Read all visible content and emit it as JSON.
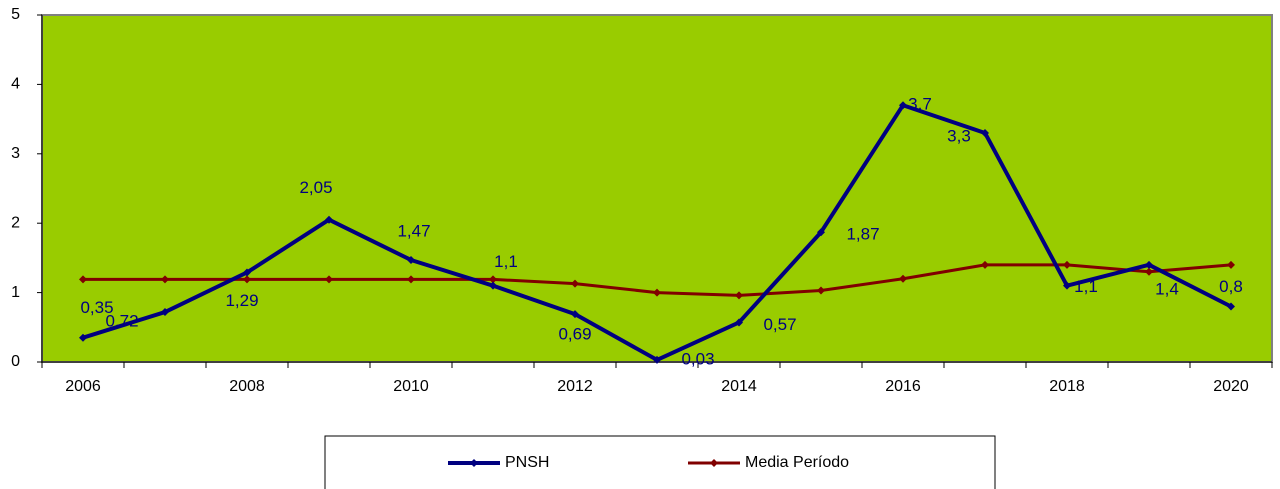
{
  "chart_data": {
    "type": "line",
    "categories": [
      "2006",
      null,
      "2008",
      null,
      "2010",
      null,
      "2012",
      null,
      "2014",
      null,
      "2016",
      null,
      "2018",
      null,
      "2020"
    ],
    "series": [
      {
        "name": "PNSH",
        "color": "#000080",
        "values": [
          0.35,
          0.72,
          1.29,
          2.05,
          1.47,
          1.1,
          0.69,
          0.03,
          0.57,
          1.87,
          3.7,
          3.3,
          1.1,
          1.4,
          0.8
        ],
        "value_labels": [
          "0,35",
          "0,72",
          "1,29",
          "2,05",
          "1,47",
          "1,1",
          "0,69",
          "0,03",
          "0,57",
          "1,87",
          "3,7",
          "3,3",
          "1,1",
          "1,4",
          "0,8"
        ]
      },
      {
        "name": "Media Período",
        "color": "#800000",
        "values": [
          1.19,
          1.19,
          1.19,
          1.19,
          1.19,
          1.19,
          1.13,
          1.0,
          0.96,
          1.03,
          1.2,
          1.4,
          1.4,
          1.3,
          1.4
        ]
      }
    ],
    "ylim": [
      0,
      5
    ],
    "yticks": [
      0,
      1,
      2,
      3,
      4,
      5
    ],
    "plot_background": "#99cc00"
  }
}
